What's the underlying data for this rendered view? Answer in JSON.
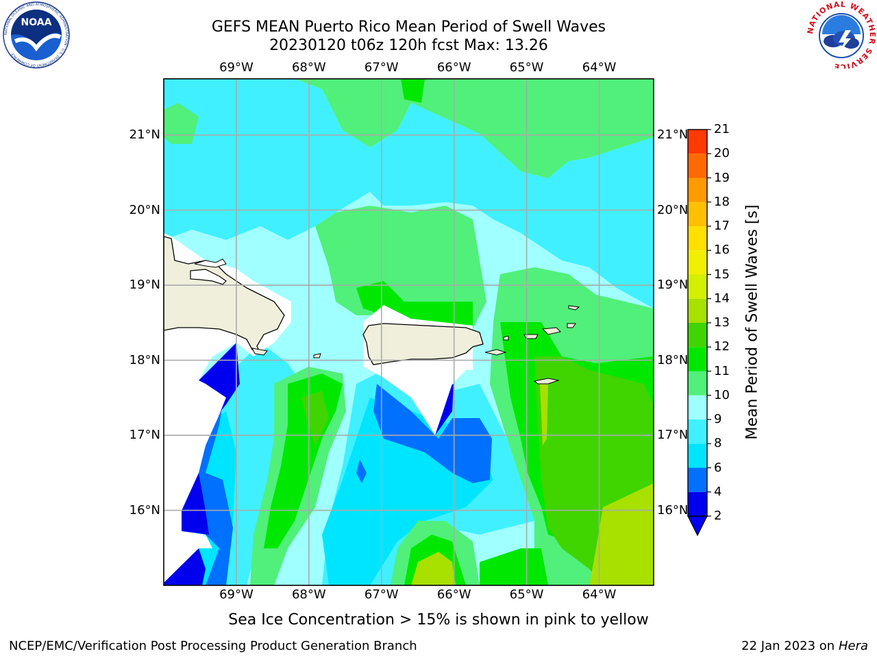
{
  "header": {
    "title_line1": "GEFS MEAN Puerto Rico Mean Period of Swell Waves",
    "title_line2": "20230120 t06z 120h fcst   Max: 13.26"
  },
  "logos": {
    "noaa_text": "NOAA",
    "noaa_ring": "NATIONAL OCEANIC AND ATMOSPHERIC ADMINISTRATION · U.S. DEPARTMENT OF COMMERCE",
    "nws_ring": "NATIONAL WEATHER SERVICE"
  },
  "map": {
    "lon_labels": [
      "69°W",
      "68°W",
      "67°W",
      "66°W",
      "65°W",
      "64°W"
    ],
    "lat_labels": [
      "21°N",
      "20°N",
      "19°N",
      "18°N",
      "17°N",
      "16°N"
    ],
    "lon_values": [
      -69,
      -68,
      -67,
      -66,
      -65,
      -64
    ],
    "lat_values": [
      21,
      20,
      19,
      18,
      17,
      16
    ],
    "extent": {
      "lon_min": -70.0,
      "lon_max": -63.25,
      "lat_min": 15.0,
      "lat_max": 21.75
    }
  },
  "colorbar": {
    "label": "Mean Period of Swell Waves [s]",
    "levels": [
      2,
      4,
      6,
      8,
      9,
      10,
      11,
      12,
      13,
      14,
      15,
      16,
      17,
      18,
      19,
      20,
      21
    ],
    "colors": [
      "#0000ee",
      "#0070ff",
      "#00e5ff",
      "#40f0ff",
      "#a0ffff",
      "#50f07a",
      "#00e800",
      "#40d400",
      "#a8e000",
      "#d2f000",
      "#f0f000",
      "#ffe000",
      "#ffc000",
      "#ff9a00",
      "#ff6a00",
      "#ff3a00",
      "#ff0000"
    ],
    "extend_below_color": "#0000ee"
  },
  "note": "Sea Ice Concentration > 15% is shown in pink to yellow",
  "footer": {
    "left": "NCEP/EMC/Verification Post Processing Product Generation Branch",
    "right_date": "22 Jan 2023 on",
    "right_machine": "Hera"
  }
}
